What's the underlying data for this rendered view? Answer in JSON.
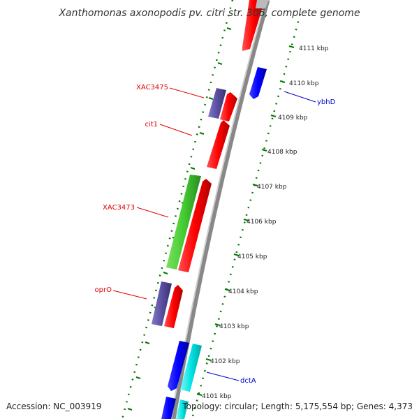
{
  "title": "Xanthomonas axonopodis pv. citri str. 306, complete genome",
  "footer": {
    "accession": "Accession: NC_003919",
    "summary": "Topology: circular; Length: 5,175,554 bp; Genes: 4,373"
  },
  "ticks": [
    "4101 kbp",
    "4102 kbp",
    "4103 kbp",
    "4104 kbp",
    "4105 kbp",
    "4106 kbp",
    "4107 kbp",
    "4108 kbp",
    "4109 kbp",
    "4110 kbp",
    "4111 kbp"
  ],
  "gene_labels": [
    {
      "name": "XAC3475",
      "color": "#e00000"
    },
    {
      "name": "cit1",
      "color": "#e00000"
    },
    {
      "name": "XAC3473",
      "color": "#e00000"
    },
    {
      "name": "oprO",
      "color": "#e00000"
    },
    {
      "name": "ybhD",
      "color": "#0000cc"
    },
    {
      "name": "dctA",
      "color": "#0000cc"
    }
  ],
  "colors": {
    "forward_cds": "#ff0000",
    "reverse_cds": "#0000ff",
    "rna": "#44cc33",
    "other": "#5a4fa0",
    "cyan": "#00e5e5",
    "backbone": "#888888",
    "tick": "#007700"
  }
}
